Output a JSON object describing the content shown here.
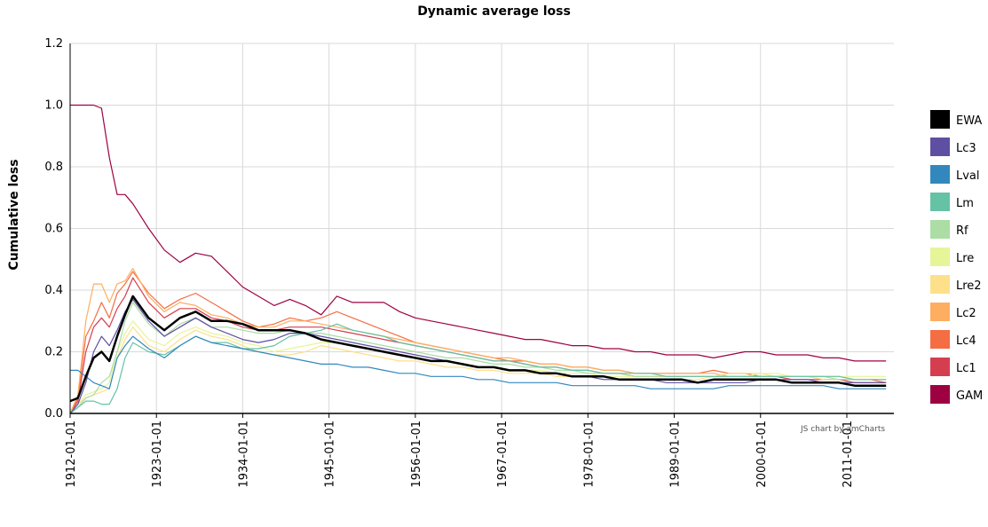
{
  "chart_data": {
    "type": "line",
    "title": "Dynamic average loss",
    "ylabel": "Cumulative loss",
    "xlabel": "",
    "ylim": [
      0,
      1.2
    ],
    "x_tick_labels": [
      "1912-01-01",
      "1923-01-01",
      "1934-01-01",
      "1945-01-01",
      "1956-01-01",
      "1967-01-01",
      "1978-01-01",
      "1989-01-01",
      "2000-01-01",
      "2011-01-01"
    ],
    "y_tick_labels": [
      "0.0",
      "0.2",
      "0.4",
      "0.6",
      "0.8",
      "1.0",
      "1.2"
    ],
    "y_ticks": [
      0,
      0.2,
      0.4,
      0.6,
      0.8,
      1.0,
      1.2
    ],
    "grid": true,
    "legend_position": "right",
    "credit": "JS chart by amCharts",
    "x_years": [
      1912,
      1913,
      1914,
      1915,
      1916,
      1917,
      1918,
      1919,
      1920,
      1922,
      1924,
      1926,
      1928,
      1930,
      1932,
      1934,
      1936,
      1938,
      1940,
      1942,
      1944,
      1946,
      1948,
      1950,
      1952,
      1954,
      1956,
      1958,
      1960,
      1962,
      1964,
      1966,
      1968,
      1970,
      1972,
      1974,
      1976,
      1978,
      1980,
      1982,
      1984,
      1986,
      1988,
      1990,
      1992,
      1994,
      1996,
      1998,
      2000,
      2002,
      2004,
      2006,
      2008,
      2010,
      2012,
      2014,
      2016
    ],
    "series": [
      {
        "name": "EWA",
        "color": "#000000",
        "width": 2.5,
        "values": [
          0.04,
          0.05,
          0.12,
          0.18,
          0.2,
          0.17,
          0.25,
          0.32,
          0.38,
          0.31,
          0.27,
          0.31,
          0.33,
          0.3,
          0.3,
          0.29,
          0.27,
          0.27,
          0.27,
          0.26,
          0.24,
          0.23,
          0.22,
          0.21,
          0.2,
          0.19,
          0.18,
          0.17,
          0.17,
          0.16,
          0.15,
          0.15,
          0.14,
          0.14,
          0.13,
          0.13,
          0.12,
          0.12,
          0.12,
          0.11,
          0.11,
          0.11,
          0.11,
          0.11,
          0.1,
          0.11,
          0.11,
          0.11,
          0.11,
          0.11,
          0.1,
          0.1,
          0.1,
          0.1,
          0.09,
          0.09,
          0.09
        ]
      },
      {
        "name": "Lc3",
        "color": "#5e4fa2",
        "width": 1.2,
        "values": [
          0.0,
          0.03,
          0.1,
          0.2,
          0.25,
          0.22,
          0.27,
          0.33,
          0.37,
          0.3,
          0.25,
          0.28,
          0.31,
          0.28,
          0.26,
          0.24,
          0.23,
          0.24,
          0.26,
          0.26,
          0.25,
          0.24,
          0.23,
          0.22,
          0.21,
          0.2,
          0.19,
          0.18,
          0.17,
          0.16,
          0.15,
          0.15,
          0.14,
          0.14,
          0.13,
          0.13,
          0.12,
          0.12,
          0.11,
          0.11,
          0.11,
          0.11,
          0.1,
          0.1,
          0.1,
          0.1,
          0.1,
          0.1,
          0.11,
          0.11,
          0.11,
          0.11,
          0.1,
          0.1,
          0.1,
          0.1,
          0.1
        ]
      },
      {
        "name": "Lval",
        "color": "#3288bd",
        "width": 1.2,
        "values": [
          0.14,
          0.14,
          0.12,
          0.1,
          0.09,
          0.08,
          0.18,
          0.22,
          0.25,
          0.21,
          0.18,
          0.22,
          0.25,
          0.23,
          0.22,
          0.21,
          0.2,
          0.19,
          0.18,
          0.17,
          0.16,
          0.16,
          0.15,
          0.15,
          0.14,
          0.13,
          0.13,
          0.12,
          0.12,
          0.12,
          0.11,
          0.11,
          0.1,
          0.1,
          0.1,
          0.1,
          0.09,
          0.09,
          0.09,
          0.09,
          0.09,
          0.08,
          0.08,
          0.08,
          0.08,
          0.08,
          0.09,
          0.09,
          0.09,
          0.09,
          0.09,
          0.09,
          0.09,
          0.08,
          0.08,
          0.08,
          0.08
        ]
      },
      {
        "name": "Lm",
        "color": "#66c2a5",
        "width": 1.2,
        "values": [
          0.0,
          0.02,
          0.04,
          0.04,
          0.03,
          0.03,
          0.08,
          0.18,
          0.23,
          0.2,
          0.19,
          0.22,
          0.25,
          0.23,
          0.23,
          0.21,
          0.21,
          0.22,
          0.25,
          0.26,
          0.27,
          0.29,
          0.27,
          0.26,
          0.25,
          0.23,
          0.22,
          0.21,
          0.2,
          0.19,
          0.18,
          0.17,
          0.17,
          0.16,
          0.15,
          0.15,
          0.14,
          0.14,
          0.13,
          0.13,
          0.13,
          0.13,
          0.12,
          0.12,
          0.12,
          0.12,
          0.12,
          0.12,
          0.12,
          0.12,
          0.12,
          0.12,
          0.12,
          0.12,
          0.11,
          0.11,
          0.11
        ]
      },
      {
        "name": "Rf",
        "color": "#abdda4",
        "width": 1.2,
        "values": [
          0.0,
          0.02,
          0.05,
          0.06,
          0.1,
          0.12,
          0.2,
          0.3,
          0.36,
          0.29,
          0.25,
          0.29,
          0.31,
          0.28,
          0.28,
          0.27,
          0.26,
          0.26,
          0.27,
          0.26,
          0.26,
          0.25,
          0.24,
          0.23,
          0.22,
          0.21,
          0.2,
          0.19,
          0.18,
          0.18,
          0.17,
          0.16,
          0.16,
          0.15,
          0.15,
          0.14,
          0.14,
          0.13,
          0.13,
          0.13,
          0.12,
          0.12,
          0.12,
          0.12,
          0.12,
          0.12,
          0.12,
          0.12,
          0.12,
          0.12,
          0.12,
          0.12,
          0.12,
          0.11,
          0.11,
          0.11,
          0.11
        ]
      },
      {
        "name": "Lre",
        "color": "#e6f598",
        "width": 1.2,
        "values": [
          0.0,
          0.03,
          0.06,
          0.07,
          0.08,
          0.1,
          0.2,
          0.26,
          0.3,
          0.24,
          0.22,
          0.26,
          0.28,
          0.26,
          0.25,
          0.23,
          0.22,
          0.2,
          0.21,
          0.22,
          0.23,
          0.23,
          0.22,
          0.21,
          0.2,
          0.19,
          0.18,
          0.17,
          0.17,
          0.16,
          0.15,
          0.15,
          0.14,
          0.14,
          0.14,
          0.13,
          0.13,
          0.13,
          0.12,
          0.12,
          0.12,
          0.12,
          0.12,
          0.12,
          0.12,
          0.12,
          0.12,
          0.12,
          0.13,
          0.13,
          0.12,
          0.12,
          0.12,
          0.12,
          0.12,
          0.12,
          0.12
        ]
      },
      {
        "name": "Lre2",
        "color": "#fee08b",
        "width": 1.2,
        "values": [
          0.0,
          0.03,
          0.05,
          0.06,
          0.07,
          0.08,
          0.18,
          0.24,
          0.28,
          0.22,
          0.2,
          0.24,
          0.27,
          0.25,
          0.24,
          0.22,
          0.2,
          0.19,
          0.19,
          0.2,
          0.22,
          0.21,
          0.2,
          0.19,
          0.18,
          0.17,
          0.17,
          0.16,
          0.15,
          0.15,
          0.14,
          0.14,
          0.13,
          0.13,
          0.13,
          0.12,
          0.12,
          0.12,
          0.11,
          0.11,
          0.11,
          0.11,
          0.11,
          0.11,
          0.11,
          0.12,
          0.13,
          0.13,
          0.13,
          0.12,
          0.12,
          0.12,
          0.11,
          0.11,
          0.11,
          0.11,
          0.11
        ]
      },
      {
        "name": "Lc2",
        "color": "#fdae61",
        "width": 1.2,
        "values": [
          0.0,
          0.06,
          0.3,
          0.42,
          0.42,
          0.36,
          0.42,
          0.43,
          0.47,
          0.38,
          0.33,
          0.36,
          0.35,
          0.32,
          0.31,
          0.29,
          0.28,
          0.28,
          0.3,
          0.3,
          0.29,
          0.28,
          0.27,
          0.26,
          0.25,
          0.24,
          0.23,
          0.22,
          0.21,
          0.2,
          0.19,
          0.18,
          0.18,
          0.17,
          0.16,
          0.16,
          0.15,
          0.15,
          0.14,
          0.14,
          0.13,
          0.13,
          0.13,
          0.13,
          0.13,
          0.13,
          0.12,
          0.12,
          0.12,
          0.12,
          0.12,
          0.12,
          0.12,
          0.12,
          0.11,
          0.11,
          0.11
        ]
      },
      {
        "name": "Lc4",
        "color": "#f46d43",
        "width": 1.2,
        "values": [
          0.0,
          0.05,
          0.25,
          0.3,
          0.36,
          0.31,
          0.39,
          0.42,
          0.46,
          0.39,
          0.34,
          0.37,
          0.39,
          0.36,
          0.33,
          0.3,
          0.28,
          0.29,
          0.31,
          0.3,
          0.31,
          0.33,
          0.31,
          0.29,
          0.27,
          0.25,
          0.23,
          0.22,
          0.21,
          0.2,
          0.19,
          0.18,
          0.17,
          0.17,
          0.16,
          0.16,
          0.15,
          0.15,
          0.14,
          0.14,
          0.13,
          0.13,
          0.13,
          0.13,
          0.13,
          0.14,
          0.13,
          0.13,
          0.12,
          0.12,
          0.12,
          0.12,
          0.11,
          0.11,
          0.11,
          0.11,
          0.1
        ]
      },
      {
        "name": "Lc1",
        "color": "#d53e4f",
        "width": 1.2,
        "values": [
          0.0,
          0.04,
          0.2,
          0.28,
          0.31,
          0.28,
          0.34,
          0.38,
          0.44,
          0.36,
          0.31,
          0.34,
          0.34,
          0.31,
          0.3,
          0.28,
          0.27,
          0.27,
          0.28,
          0.28,
          0.28,
          0.27,
          0.26,
          0.25,
          0.24,
          0.23,
          0.22,
          0.21,
          0.2,
          0.19,
          0.18,
          0.17,
          0.17,
          0.16,
          0.15,
          0.15,
          0.14,
          0.14,
          0.13,
          0.13,
          0.12,
          0.12,
          0.12,
          0.12,
          0.12,
          0.12,
          0.12,
          0.12,
          0.12,
          0.12,
          0.11,
          0.11,
          0.11,
          0.11,
          0.1,
          0.1,
          0.1
        ]
      },
      {
        "name": "GAM",
        "color": "#9e0142",
        "width": 1.2,
        "values": [
          1.0,
          1.0,
          1.0,
          1.0,
          0.99,
          0.83,
          0.71,
          0.71,
          0.68,
          0.6,
          0.53,
          0.49,
          0.52,
          0.51,
          0.46,
          0.41,
          0.38,
          0.35,
          0.37,
          0.35,
          0.32,
          0.38,
          0.36,
          0.36,
          0.36,
          0.33,
          0.31,
          0.3,
          0.29,
          0.28,
          0.27,
          0.26,
          0.25,
          0.24,
          0.24,
          0.23,
          0.22,
          0.22,
          0.21,
          0.21,
          0.2,
          0.2,
          0.19,
          0.19,
          0.19,
          0.18,
          0.19,
          0.2,
          0.2,
          0.19,
          0.19,
          0.19,
          0.18,
          0.18,
          0.17,
          0.17,
          0.17
        ]
      }
    ]
  }
}
